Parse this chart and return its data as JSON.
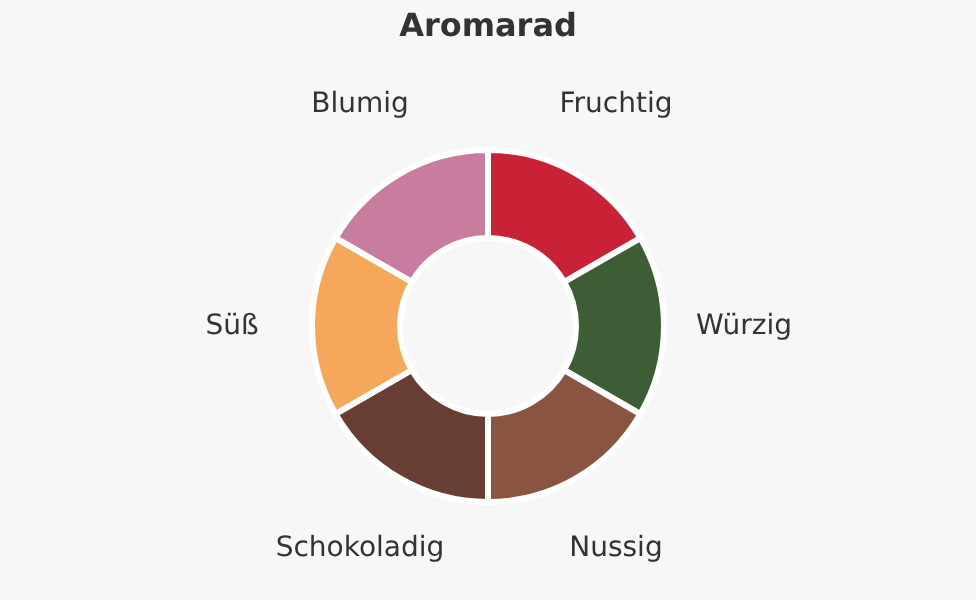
{
  "chart_data": {
    "type": "donut",
    "title": "Aromarad",
    "categories": [
      "Fruchtig",
      "Würzig",
      "Nussig",
      "Schokoladig",
      "Süß",
      "Blumig"
    ],
    "values": [
      16.67,
      16.67,
      16.66,
      16.67,
      16.67,
      16.66
    ],
    "colors": [
      "#c92236",
      "#3d5e34",
      "#8a5540",
      "#683d33",
      "#f5a85a",
      "#c97d9e"
    ],
    "legend": false
  }
}
